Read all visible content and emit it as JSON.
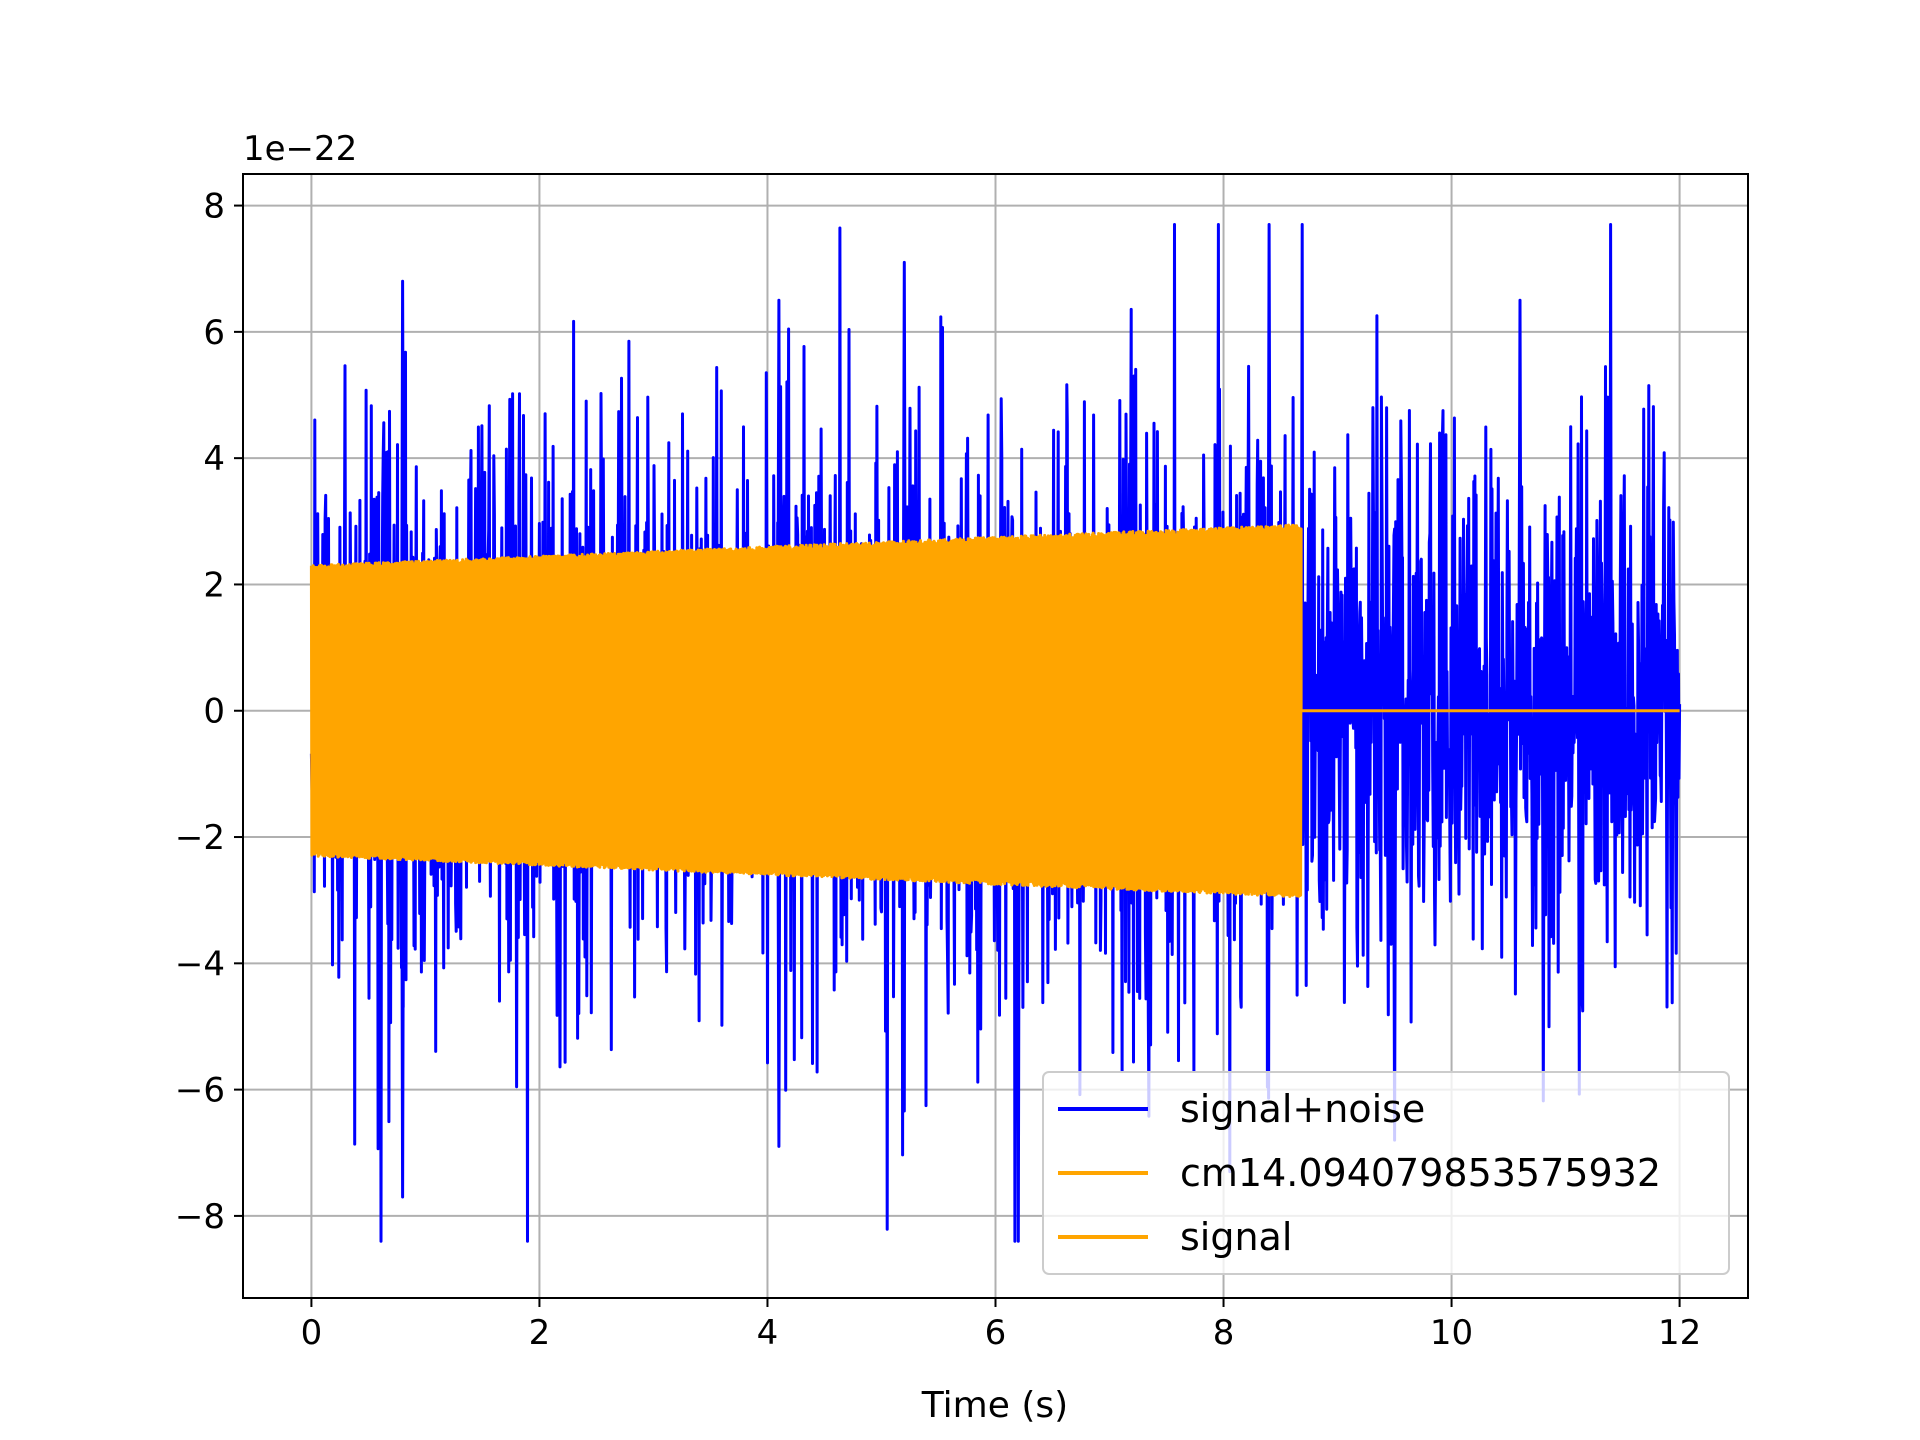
{
  "chart_data": {
    "type": "line",
    "title": "",
    "xlabel": "Time (s)",
    "ylabel": "",
    "y_offset_label": "1e−22",
    "xlim": [
      -0.6,
      12.6
    ],
    "ylim": [
      -9.3,
      8.5
    ],
    "x_ticks": [
      0,
      2,
      4,
      6,
      8,
      10,
      12
    ],
    "x_tick_labels": [
      "0",
      "2",
      "4",
      "6",
      "8",
      "10",
      "12"
    ],
    "y_ticks": [
      -8,
      -6,
      -4,
      -2,
      0,
      2,
      4,
      6,
      8
    ],
    "y_tick_labels": [
      "−8",
      "−6",
      "−4",
      "−2",
      "0",
      "2",
      "4",
      "6",
      "8"
    ],
    "grid": true,
    "legend_position": "lower-right",
    "series": [
      {
        "name": "signal+noise",
        "color": "#0000ff",
        "x_range": [
          0,
          12
        ],
        "noise_envelope": {
          "typical_max": 5.5,
          "peak_max": 7.7,
          "peak_min": -8.4
        },
        "notable_peaks": [
          {
            "x": 0.8,
            "y": 6.8
          },
          {
            "x": 0.8,
            "y": -7.7
          },
          {
            "x": 5.2,
            "y": 7.1
          },
          {
            "x": 8.4,
            "y": 7.7
          },
          {
            "x": 6.2,
            "y": -8.4
          },
          {
            "x": 4.1,
            "y": 6.5
          },
          {
            "x": 10.6,
            "y": 6.5
          },
          {
            "x": 4.1,
            "y": -6.9
          },
          {
            "x": 9.5,
            "y": -6.8
          }
        ]
      },
      {
        "name": "cm14.094079853575932",
        "color": "#ffa500",
        "x_range": [
          0,
          8.68
        ],
        "amplitude_start": 2.3,
        "amplitude_end": 2.95,
        "after_end_value": 0
      },
      {
        "name": "signal",
        "color": "#ffa500",
        "x_range": [
          0,
          12
        ],
        "amplitude_start": 2.3,
        "amplitude_end": 2.95,
        "signal_end": 8.68,
        "after_end_value": 0
      }
    ]
  }
}
